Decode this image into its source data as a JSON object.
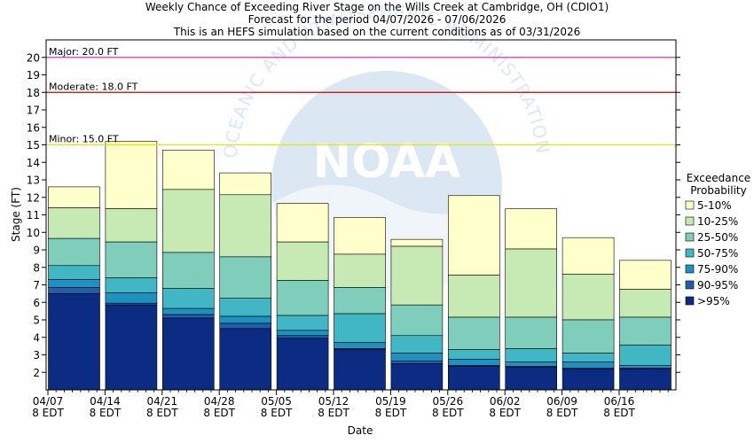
{
  "header": {
    "line1": "Weekly Chance of Exceeding River Stage on the Wills Creek at Cambridge, OH (CDIO1)",
    "line2": "Forecast for the period 04/07/2026 - 07/06/2026",
    "line3": "This is an HEFS simulation based on the current conditions as of 03/31/2026"
  },
  "watermark": {
    "logo_text": "NOAA",
    "arc_text": "OCEANIC AND ATMOSPHERIC ADMINISTRATION"
  },
  "colors": {
    "5-10%": "#ffffcc",
    "10-25%": "#c7e9b4",
    "25-50%": "#7fcdbb",
    "50-75%": "#41b6c4",
    "75-90%": "#1d91c0",
    "90-95%": "#225ea8",
    ">95%": "#0c2c84",
    "major": "#cc33cc",
    "moderate": "#cc0000",
    "minor": "#e6e600"
  },
  "chart_data": {
    "type": "bar",
    "subtype": "stacked-range",
    "xlabel": "Date",
    "ylabel": "Stage (FT)",
    "ylim": [
      1,
      21
    ],
    "yticks": [
      2,
      3,
      4,
      5,
      6,
      7,
      8,
      9,
      10,
      11,
      12,
      13,
      14,
      15,
      16,
      17,
      18,
      19,
      20
    ],
    "grid": false,
    "xticks": [
      {
        "date": "04/07",
        "time": "8 EDT"
      },
      {
        "date": "04/14",
        "time": "8 EDT"
      },
      {
        "date": "04/21",
        "time": "8 EDT"
      },
      {
        "date": "04/28",
        "time": "8 EDT"
      },
      {
        "date": "05/05",
        "time": "8 EDT"
      },
      {
        "date": "05/12",
        "time": "8 EDT"
      },
      {
        "date": "05/19",
        "time": "8 EDT"
      },
      {
        "date": "05/26",
        "time": "8 EDT"
      },
      {
        "date": "06/02",
        "time": "8 EDT"
      },
      {
        "date": "06/09",
        "time": "8 EDT"
      },
      {
        "date": "06/16",
        "time": "8 EDT"
      }
    ],
    "legend": {
      "title_line1": "Exceedance",
      "title_line2": "Probability",
      "placement": "right",
      "entries": [
        "5-10%",
        "10-25%",
        "25-50%",
        "50-75%",
        "75-90%",
        "90-95%",
        ">95%"
      ]
    },
    "thresholds": [
      {
        "name": "Major",
        "label": "Major: 20.0 FT",
        "value": 20.0
      },
      {
        "name": "Moderate",
        "label": "Moderate: 18.0 FT",
        "value": 18.0
      },
      {
        "name": "Minor",
        "label": "Minor: 15.0 FT",
        "value": 15.0
      }
    ],
    "boundaries_note_order": [
      "5%",
      "10%",
      "25%",
      "50%",
      "75%",
      "90%",
      "95%"
    ],
    "weeks": [
      {
        "week": "04/07",
        "boundaries": [
          12.6,
          11.4,
          9.65,
          8.1,
          7.3,
          6.85,
          6.5
        ]
      },
      {
        "week": "04/14",
        "boundaries": [
          15.2,
          11.35,
          9.45,
          7.4,
          6.55,
          5.95,
          5.85
        ]
      },
      {
        "week": "04/21",
        "boundaries": [
          14.7,
          12.45,
          8.85,
          6.8,
          5.65,
          5.3,
          5.1
        ]
      },
      {
        "week": "04/28",
        "boundaries": [
          13.4,
          12.15,
          8.6,
          6.25,
          5.2,
          4.8,
          4.5
        ]
      },
      {
        "week": "05/05",
        "boundaries": [
          11.65,
          9.45,
          7.25,
          5.25,
          4.4,
          4.1,
          3.95
        ]
      },
      {
        "week": "05/12",
        "boundaries": [
          10.85,
          8.75,
          6.85,
          5.35,
          3.7,
          3.35,
          3.3
        ]
      },
      {
        "week": "05/19",
        "boundaries": [
          9.6,
          9.2,
          5.85,
          4.1,
          3.1,
          2.65,
          2.5
        ]
      },
      {
        "week": "05/26",
        "boundaries": [
          12.1,
          7.55,
          5.15,
          3.3,
          2.75,
          2.4,
          2.35
        ]
      },
      {
        "week": "06/02",
        "boundaries": [
          11.35,
          9.05,
          5.15,
          3.35,
          2.6,
          2.35,
          2.3
        ]
      },
      {
        "week": "06/09",
        "boundaries": [
          9.7,
          7.6,
          5.0,
          3.1,
          2.6,
          2.25,
          2.2
        ]
      },
      {
        "week": "06/16",
        "boundaries": [
          8.4,
          6.75,
          5.15,
          3.55,
          2.4,
          2.25,
          2.2
        ]
      }
    ]
  }
}
